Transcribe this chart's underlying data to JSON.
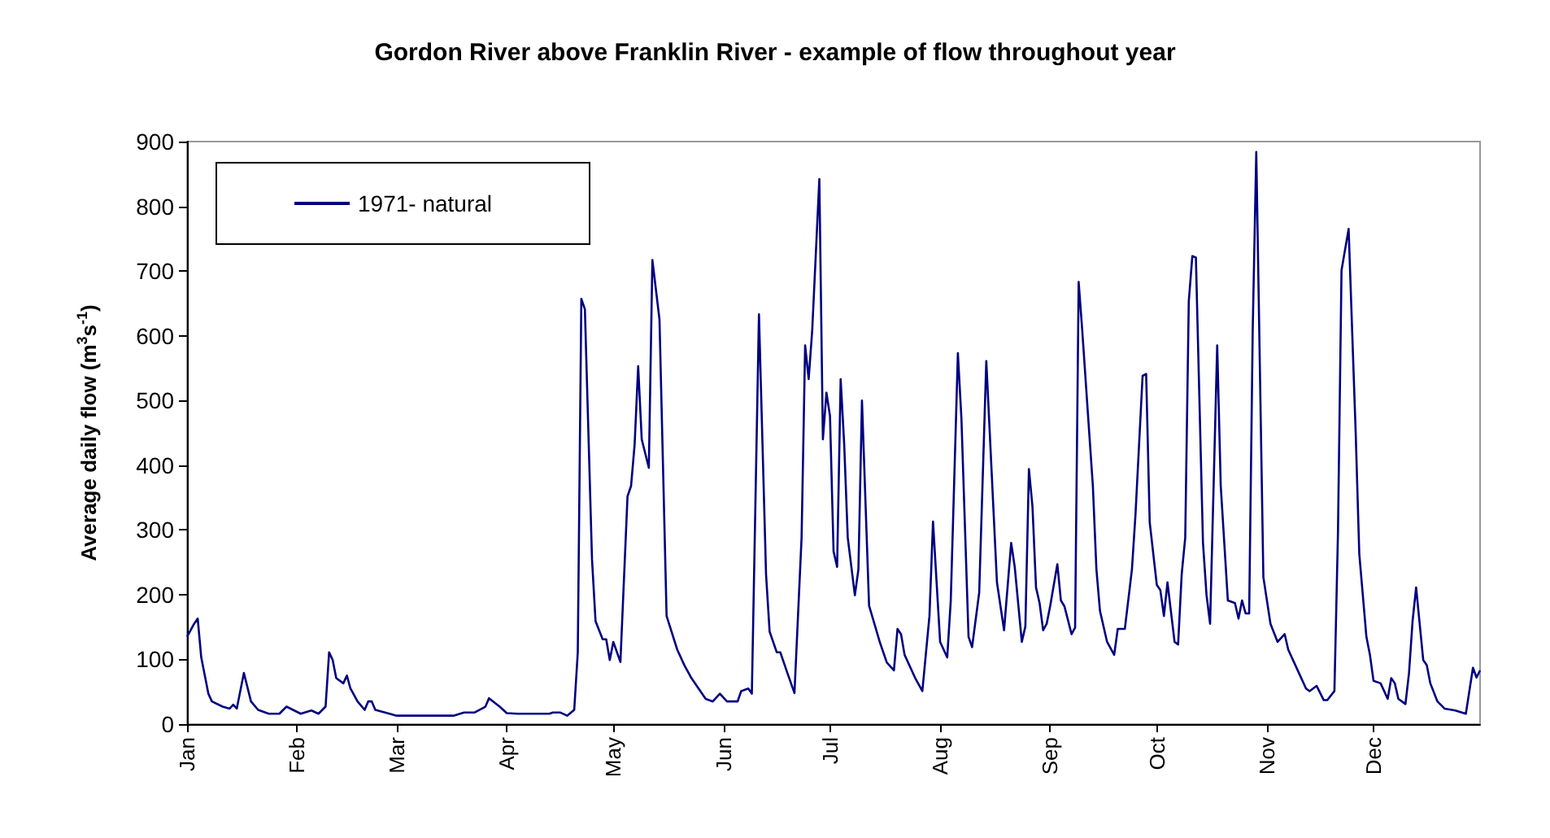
{
  "chart_data": {
    "type": "line",
    "title": "Gordon River above Franklin River - example of flow throughout year",
    "ylabel": "Average daily flow (m$^{3}$s$^{-1}$)",
    "x": [
      "--01-01",
      "--01-03",
      "--01-04",
      "--01-05",
      "--01-07",
      "--01-08",
      "--01-11",
      "--01-13",
      "--01-14",
      "--01-15",
      "--01-17",
      "--01-19",
      "--01-21",
      "--01-24",
      "--01-27",
      "--01-29",
      "--02-02",
      "--02-05",
      "--02-07",
      "--02-09",
      "--02-10",
      "--02-11",
      "--02-12",
      "--02-14",
      "--02-15",
      "--02-16",
      "--02-18",
      "--02-20",
      "--02-21",
      "--02-22",
      "--02-23",
      "--02-27",
      "--03-01",
      "--03-06",
      "--03-17",
      "--03-20",
      "--03-23",
      "--03-26",
      "--03-27",
      "--03-30",
      "--04-01",
      "--04-04",
      "--04-13",
      "--04-14",
      "--04-16",
      "--04-18",
      "--04-20",
      "--04-21",
      "--04-22",
      "--04-23",
      "--04-25",
      "--04-26",
      "--04-28",
      "--04-29",
      "--04-30",
      "--05-01",
      "--05-03",
      "--05-05",
      "--05-06",
      "--05-07",
      "--05-08",
      "--05-09",
      "--05-11",
      "--05-12",
      "--05-14",
      "--05-16",
      "--05-19",
      "--05-21",
      "--05-23",
      "--05-25",
      "--05-27",
      "--05-29",
      "--05-31",
      "--06-02",
      "--06-05",
      "--06-06",
      "--06-08",
      "--06-09",
      "--06-11",
      "--06-13",
      "--06-14",
      "--06-16",
      "--06-17",
      "--06-19",
      "--06-21",
      "--06-23",
      "--06-24",
      "--06-25",
      "--06-26",
      "--06-28",
      "--06-29",
      "--06-30",
      "--07-01",
      "--07-02",
      "--07-03",
      "--07-04",
      "--07-05",
      "--07-06",
      "--07-08",
      "--07-09",
      "--07-10",
      "--07-12",
      "--07-15",
      "--07-17",
      "--07-19",
      "--07-20",
      "--07-21",
      "--07-22",
      "--07-25",
      "--07-27",
      "--07-29",
      "--07-30",
      "--08-01",
      "--08-03",
      "--08-04",
      "--08-06",
      "--08-07",
      "--08-09",
      "--08-10",
      "--08-12",
      "--08-14",
      "--08-17",
      "--08-19",
      "--08-21",
      "--08-22",
      "--08-24",
      "--08-25",
      "--08-26",
      "--08-27",
      "--08-28",
      "--08-29",
      "--08-30",
      "--08-31",
      "--09-01",
      "--09-03",
      "--09-04",
      "--09-05",
      "--09-07",
      "--09-08",
      "--09-09",
      "--09-10",
      "--09-12",
      "--09-13",
      "--09-14",
      "--09-15",
      "--09-17",
      "--09-19",
      "--09-20",
      "--09-22",
      "--09-24",
      "--09-25",
      "--09-27",
      "--09-28",
      "--09-29",
      "--10-01",
      "--10-02",
      "--10-03",
      "--10-04",
      "--10-06",
      "--10-07",
      "--10-08",
      "--10-09",
      "--10-10",
      "--10-11",
      "--10-12",
      "--10-14",
      "--10-15",
      "--10-16",
      "--10-18",
      "--10-19",
      "--10-21",
      "--10-23",
      "--10-24",
      "--10-25",
      "--10-26",
      "--10-27",
      "--10-28",
      "--10-29",
      "--10-31",
      "--11-02",
      "--11-04",
      "--11-06",
      "--11-07",
      "--11-10",
      "--11-12",
      "--11-13",
      "--11-15",
      "--11-17",
      "--11-18",
      "--11-20",
      "--11-21",
      "--11-22",
      "--11-24",
      "--11-26",
      "--11-27",
      "--11-29",
      "--11-30",
      "--12-01",
      "--12-03",
      "--12-05",
      "--12-06",
      "--12-07",
      "--12-08",
      "--12-10",
      "--12-11",
      "--12-12",
      "--12-13",
      "--12-15",
      "--12-16",
      "--12-17",
      "--12-19",
      "--12-21",
      "--12-24",
      "--12-27",
      "--12-29",
      "--12-30",
      "--12-31"
    ],
    "series": [
      {
        "name": "1971- natural",
        "color": "#000080",
        "values": [
          135,
          155,
          163,
          103,
          47,
          35,
          27,
          24,
          30,
          24,
          79,
          35,
          22,
          16,
          16,
          27,
          16,
          21,
          16,
          27,
          111,
          99,
          71,
          63,
          75,
          55,
          35,
          22,
          35,
          35,
          22,
          16,
          13,
          13,
          13,
          18,
          18,
          27,
          40,
          27,
          17,
          16,
          16,
          18,
          18,
          13,
          22,
          111,
          657,
          641,
          255,
          159,
          131,
          131,
          99,
          127,
          96,
          352,
          368,
          432,
          553,
          440,
          396,
          717,
          625,
          167,
          115,
          91,
          71,
          55,
          39,
          35,
          47,
          35,
          35,
          51,
          55,
          47,
          633,
          231,
          143,
          111,
          111,
          79,
          48,
          288,
          585,
          533,
          609,
          842,
          440,
          512,
          476,
          267,
          243,
          533,
          432,
          288,
          199,
          239,
          500,
          183,
          127,
          95,
          83,
          147,
          139,
          107,
          71,
          51,
          167,
          313,
          127,
          103,
          191,
          573,
          472,
          135,
          119,
          203,
          561,
          219,
          145,
          280,
          243,
          127,
          151,
          394,
          336,
          211,
          187,
          145,
          155,
          183,
          247,
          191,
          182,
          139,
          149,
          683,
          609,
          448,
          368,
          239,
          175,
          127,
          107,
          147,
          147,
          239,
          324,
          538,
          541,
          312,
          215,
          207,
          167,
          219,
          127,
          123,
          231,
          288,
          653,
          723,
          721,
          280,
          199,
          155,
          585,
          368,
          191,
          187,
          163,
          191,
          171,
          171,
          609,
          884,
          227,
          155,
          127,
          139,
          115,
          79,
          55,
          51,
          59,
          37,
          37,
          51,
          296,
          701,
          765,
          448,
          263,
          135,
          107,
          67,
          63,
          39,
          71,
          63,
          39,
          31,
          79,
          159,
          211,
          99,
          91,
          63,
          35,
          24,
          21,
          16,
          87,
          72,
          83
        ]
      }
    ],
    "xlim": [
      "--01-01",
      "--12-31"
    ],
    "xticks": [
      {
        "value": "--01-01",
        "label": "Jan"
      },
      {
        "value": "--02-01",
        "label": "Feb"
      },
      {
        "value": "--03-01",
        "label": "Mar"
      },
      {
        "value": "--04-01",
        "label": "Apr"
      },
      {
        "value": "--05-01",
        "label": "May"
      },
      {
        "value": "--06-01",
        "label": "Jun"
      },
      {
        "value": "--07-01",
        "label": "Jul"
      },
      {
        "value": "--08-01",
        "label": "Aug"
      },
      {
        "value": "--09-01",
        "label": "Sep"
      },
      {
        "value": "--10-01",
        "label": "Oct"
      },
      {
        "value": "--11-01",
        "label": "Nov"
      },
      {
        "value": "--12-01",
        "label": "Dec"
      }
    ],
    "ylim": [
      0,
      900
    ],
    "yticks": [
      0,
      100,
      200,
      300,
      400,
      500,
      600,
      700,
      800,
      900
    ],
    "grid": false,
    "legend": "top left"
  }
}
